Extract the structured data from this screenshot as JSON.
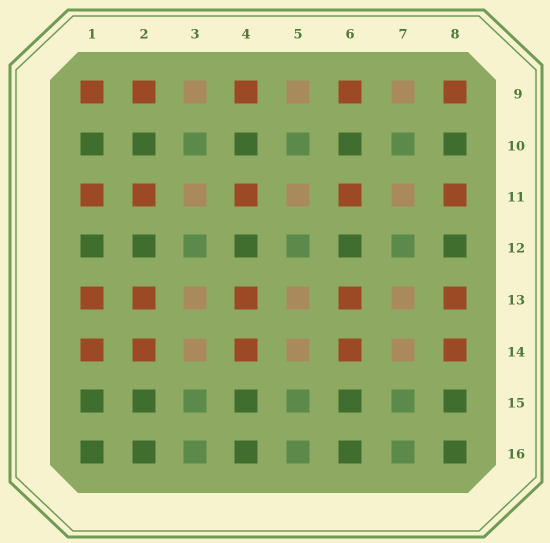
{
  "column_labels": [
    "1",
    "2",
    "3",
    "4",
    "5",
    "6",
    "7",
    "8"
  ],
  "row_labels": [
    "9",
    "10",
    "11",
    "12",
    "13",
    "14",
    "15",
    "16"
  ],
  "row_color_types": [
    "red",
    "green",
    "red",
    "green",
    "red",
    "red",
    "green",
    "green"
  ],
  "column_shade": [
    "dark",
    "dark",
    "light",
    "dark",
    "light",
    "dark",
    "light",
    "dark"
  ],
  "colors": {
    "background": "#f7f3cf",
    "border_line": "#6f9b55",
    "panel": "#8eaa62",
    "red_dark": "#9c4a26",
    "red_light": "#a98a5c",
    "green_dark": "#3f6e2f",
    "green_light": "#5c8a4a"
  }
}
